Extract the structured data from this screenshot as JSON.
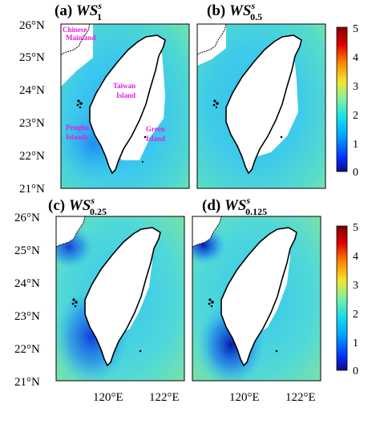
{
  "panels": [
    {
      "id": "a",
      "title_prefix": "(a) ",
      "title_main": "WS",
      "title_sup": "s",
      "title_sub": "1"
    },
    {
      "id": "b",
      "title_prefix": "(b) ",
      "title_main": "WS",
      "title_sup": "s",
      "title_sub": "0.5"
    },
    {
      "id": "c",
      "title_prefix": "(c) ",
      "title_main": "WS",
      "title_sup": "s",
      "title_sub": "0.25"
    },
    {
      "id": "d",
      "title_prefix": "(d) ",
      "title_main": "WS",
      "title_sup": "s",
      "title_sub": "0.125"
    }
  ],
  "lat_ticks": [
    "26°N",
    "25°N",
    "24°N",
    "23°N",
    "22°N",
    "21°N"
  ],
  "lon_ticks": [
    "120°E",
    "122°E"
  ],
  "colorbar": {
    "ticks": [
      "5",
      "4",
      "3",
      "2",
      "1",
      "0"
    ],
    "colors": [
      "#0a0a8c",
      "#0033ff",
      "#00a8ff",
      "#18e0e8",
      "#80f0a0",
      "#f0e830",
      "#ff8800",
      "#e00000",
      "#800000"
    ]
  },
  "annotations": {
    "chinese_mainland": [
      "Chinese",
      "Mainland"
    ],
    "taiwan_island": [
      "Taiwan",
      "Island"
    ],
    "penghu_islands": [
      "Penghu",
      "Islands"
    ],
    "green_island": [
      "Green",
      "Island"
    ]
  }
}
